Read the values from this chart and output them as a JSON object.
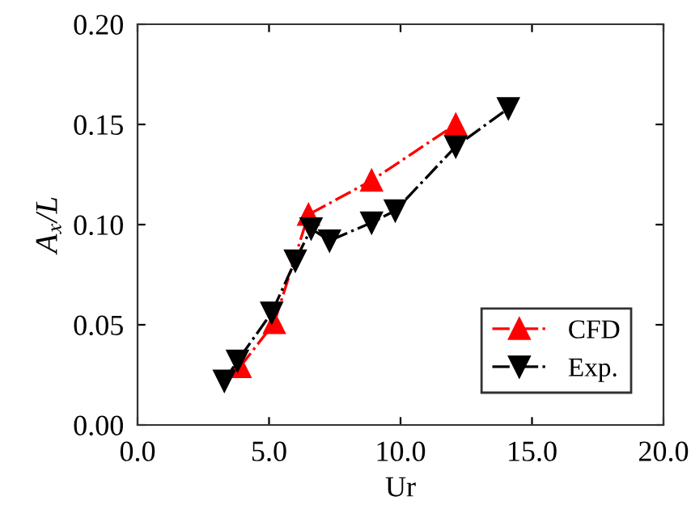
{
  "chart_data": {
    "type": "line",
    "xlabel": "Ur",
    "ylabel": "A$_{x}$/L",
    "xlim": [
      0,
      20
    ],
    "xticks": [
      {
        "value": 0,
        "label": "0.0"
      },
      {
        "value": 5,
        "label": "5.0"
      },
      {
        "value": 10,
        "label": "10.0"
      },
      {
        "value": 15,
        "label": "15.0"
      },
      {
        "value": 20,
        "label": "20.0"
      }
    ],
    "ylim": [
      0,
      0.2
    ],
    "yticks": [
      {
        "value": 0,
        "label": "0.00"
      },
      {
        "value": 0.05,
        "label": "0.05"
      },
      {
        "value": 0.1,
        "label": "0.10"
      },
      {
        "value": 0.15,
        "label": "0.15"
      },
      {
        "value": 0.2,
        "label": "0.20"
      }
    ],
    "grid": false,
    "legend": "bottom right",
    "line_style": "dashdot",
    "series": [
      {
        "name": "CFD",
        "color": "#ff0000",
        "marker": "triangle",
        "x": [
          3.9,
          5.2,
          6.5,
          8.9,
          12.1
        ],
        "values": [
          0.029,
          0.051,
          0.105,
          0.122,
          0.15
        ]
      },
      {
        "name": "Exp.",
        "color": "#000000",
        "marker": "triangle_down",
        "x": [
          3.3,
          3.8,
          5.1,
          6.0,
          6.6,
          7.3,
          8.9,
          9.8,
          12.1,
          14.1
        ],
        "values": [
          0.022,
          0.032,
          0.056,
          0.082,
          0.098,
          0.092,
          0.101,
          0.107,
          0.139,
          0.158
        ]
      }
    ]
  }
}
